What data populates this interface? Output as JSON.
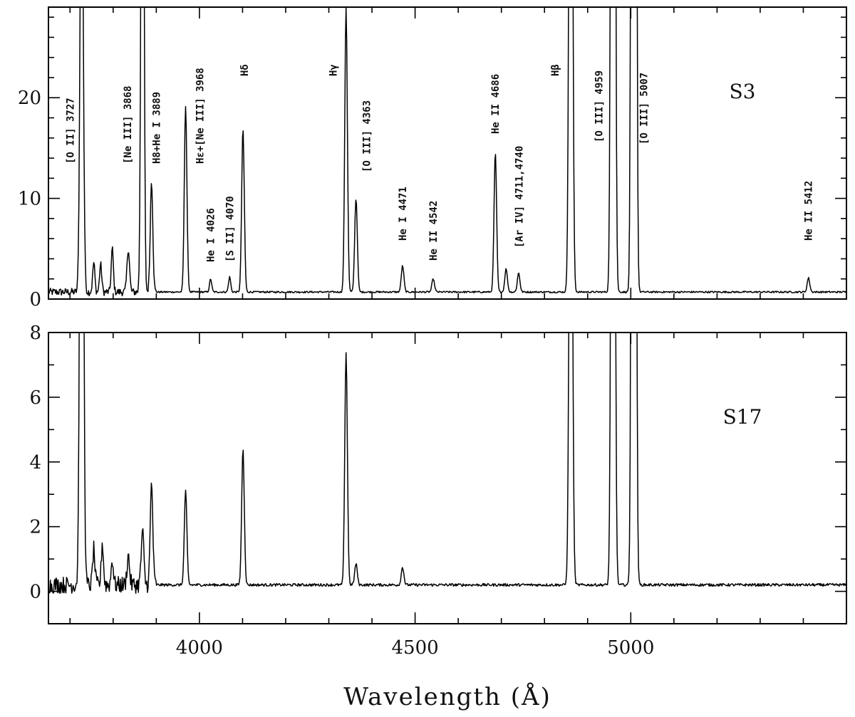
{
  "chart_data": {
    "type": "line",
    "xlabel": "Wavelength (Å)",
    "xlim": [
      3650,
      5500
    ],
    "x_ticks": [
      4000,
      4500,
      5000
    ],
    "x_minor_step": 100,
    "panels": [
      {
        "name": "S3",
        "ylim": [
          0,
          29
        ],
        "y_ticks": [
          0,
          10,
          20
        ],
        "y_minor_step": 2,
        "continuum": 0.7,
        "lines": [
          {
            "wavelength": 3727,
            "peak": 50,
            "width": 3.5,
            "label": "[O II] 3727"
          },
          {
            "wavelength": 3755,
            "peak": 2.9,
            "width": 2.5,
            "label": ""
          },
          {
            "wavelength": 3771,
            "peak": 2.7,
            "width": 2.5,
            "label": ""
          },
          {
            "wavelength": 3798,
            "peak": 4.3,
            "width": 2.5,
            "label": ""
          },
          {
            "wavelength": 3835,
            "peak": 4.3,
            "width": 3,
            "label": ""
          },
          {
            "wavelength": 3868,
            "peak": 80,
            "width": 3,
            "label": "[Ne III] 3868"
          },
          {
            "wavelength": 3889,
            "peak": 11,
            "width": 3,
            "label": "H8+He I 3889"
          },
          {
            "wavelength": 3968,
            "peak": 18.5,
            "width": 3,
            "label": "Hε+[Ne III] 3968"
          },
          {
            "wavelength": 4026,
            "peak": 1.3,
            "width": 2.5,
            "label": "He I 4026"
          },
          {
            "wavelength": 4070,
            "peak": 1.5,
            "width": 2.5,
            "label": "[S II] 4070"
          },
          {
            "wavelength": 4101,
            "peak": 16.2,
            "width": 3,
            "label": "Hδ"
          },
          {
            "wavelength": 4340,
            "peak": 28.3,
            "width": 3,
            "label": "Hγ"
          },
          {
            "wavelength": 4363,
            "peak": 9.3,
            "width": 3,
            "label": "[O III] 4363"
          },
          {
            "wavelength": 4471,
            "peak": 2.6,
            "width": 3,
            "label": "He I 4471"
          },
          {
            "wavelength": 4542,
            "peak": 1.3,
            "width": 3,
            "label": "He II 4542"
          },
          {
            "wavelength": 4686,
            "peak": 13.8,
            "width": 3,
            "label": "He II 4686"
          },
          {
            "wavelength": 4711,
            "peak": 2.3,
            "width": 3,
            "label": "[Ar IV] 4711,4740"
          },
          {
            "wavelength": 4740,
            "peak": 1.9,
            "width": 3,
            "label": ""
          },
          {
            "wavelength": 4861,
            "peak": 90,
            "width": 3.5,
            "label": "Hβ"
          },
          {
            "wavelength": 4959,
            "peak": 200,
            "width": 3.5,
            "label": "[O III] 4959"
          },
          {
            "wavelength": 5007,
            "peak": 400,
            "width": 3.5,
            "label": "[O III] 5007"
          },
          {
            "wavelength": 5412,
            "peak": 1.4,
            "width": 3,
            "label": "He II 5412"
          }
        ]
      },
      {
        "name": "S17",
        "ylim": [
          -1,
          8
        ],
        "y_ticks": [
          0,
          2,
          4,
          6,
          8
        ],
        "y_minor_step": 1,
        "continuum": 0.2,
        "lines": [
          {
            "wavelength": 3727,
            "peak": 30,
            "width": 3.5
          },
          {
            "wavelength": 3755,
            "peak": 1.1,
            "width": 2.5
          },
          {
            "wavelength": 3775,
            "peak": 1.3,
            "width": 2.5
          },
          {
            "wavelength": 3798,
            "peak": 0.8,
            "width": 2.5
          },
          {
            "wavelength": 3835,
            "peak": 0.9,
            "width": 3
          },
          {
            "wavelength": 3868,
            "peak": 1.65,
            "width": 3
          },
          {
            "wavelength": 3889,
            "peak": 3.1,
            "width": 3
          },
          {
            "wavelength": 3968,
            "peak": 2.9,
            "width": 3
          },
          {
            "wavelength": 4101,
            "peak": 4.2,
            "width": 3
          },
          {
            "wavelength": 4340,
            "peak": 7.2,
            "width": 3
          },
          {
            "wavelength": 4363,
            "peak": 0.65,
            "width": 3
          },
          {
            "wavelength": 4471,
            "peak": 0.55,
            "width": 3
          },
          {
            "wavelength": 4861,
            "peak": 20,
            "width": 3.5
          },
          {
            "wavelength": 4959,
            "peak": 40,
            "width": 3.5
          },
          {
            "wavelength": 5007,
            "peak": 80,
            "width": 3.5
          }
        ]
      }
    ]
  }
}
